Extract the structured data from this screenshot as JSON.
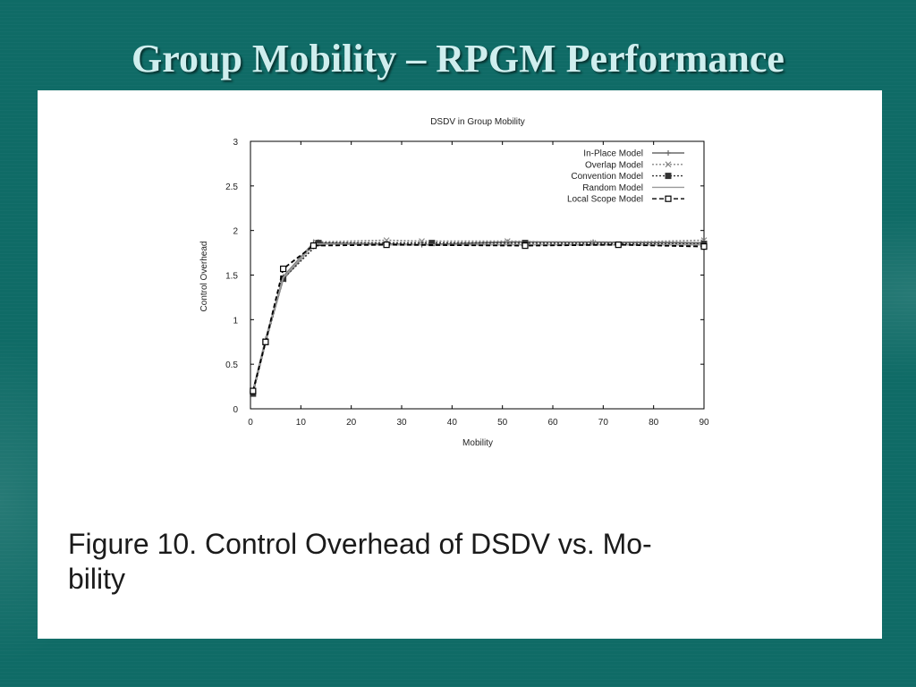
{
  "slide": {
    "title": "Group Mobility – RPGM Performance"
  },
  "caption": {
    "line1": "Figure 10. Control Overhead of DSDV vs. Mo-",
    "line2": "bility"
  },
  "chart_data": {
    "type": "line",
    "title": "DSDV in Group Mobility",
    "xlabel": "Mobility",
    "ylabel": "Control Overhead",
    "xlim": [
      0,
      90
    ],
    "ylim": [
      0,
      3
    ],
    "xticks": [
      0,
      10,
      20,
      30,
      40,
      50,
      60,
      70,
      80,
      90
    ],
    "yticks": [
      0,
      0.5,
      1,
      1.5,
      2,
      2.5,
      3
    ],
    "ytick_labels": [
      "0",
      "0.5",
      "1",
      "1.5",
      "2",
      "2.5",
      "3"
    ],
    "grid": false,
    "legend_position": "top-right",
    "series": [
      {
        "name": "In-Place Model",
        "marker": "plus",
        "dash": "solid",
        "color": "#6a6a6a",
        "x": [
          0.5,
          3,
          6.5,
          12.5,
          27,
          34,
          51,
          68,
          90
        ],
        "y": [
          0.2,
          0.78,
          1.48,
          1.86,
          1.85,
          1.84,
          1.87,
          1.87,
          1.86
        ]
      },
      {
        "name": "Overlap Model",
        "marker": "x",
        "dash": "dotted",
        "color": "#888888",
        "x": [
          0.5,
          3,
          6.5,
          13,
          27,
          34,
          51,
          68,
          90
        ],
        "y": [
          0.19,
          0.76,
          1.45,
          1.87,
          1.89,
          1.88,
          1.88,
          1.86,
          1.89
        ]
      },
      {
        "name": "Convention Model",
        "marker": "filled-square",
        "dash": "dotted",
        "color": "#333333",
        "x": [
          0.5,
          3,
          6.5,
          13.5,
          36,
          54.5,
          90
        ],
        "y": [
          0.17,
          0.75,
          1.46,
          1.86,
          1.86,
          1.86,
          1.85
        ]
      },
      {
        "name": "Random Model",
        "marker": "none",
        "dash": "solid",
        "color": "#9a9a9a",
        "x": [
          0.5,
          3,
          6.5,
          12.5,
          27,
          51,
          90
        ],
        "y": [
          0.18,
          0.77,
          1.47,
          1.85,
          1.84,
          1.84,
          1.84
        ]
      },
      {
        "name": "Local Scope Model",
        "marker": "open-square",
        "dash": "dashed",
        "color": "#000000",
        "x": [
          0.5,
          3,
          6.5,
          12.5,
          27,
          54.5,
          73,
          90
        ],
        "y": [
          0.2,
          0.75,
          1.57,
          1.83,
          1.84,
          1.83,
          1.84,
          1.82
        ]
      }
    ]
  }
}
